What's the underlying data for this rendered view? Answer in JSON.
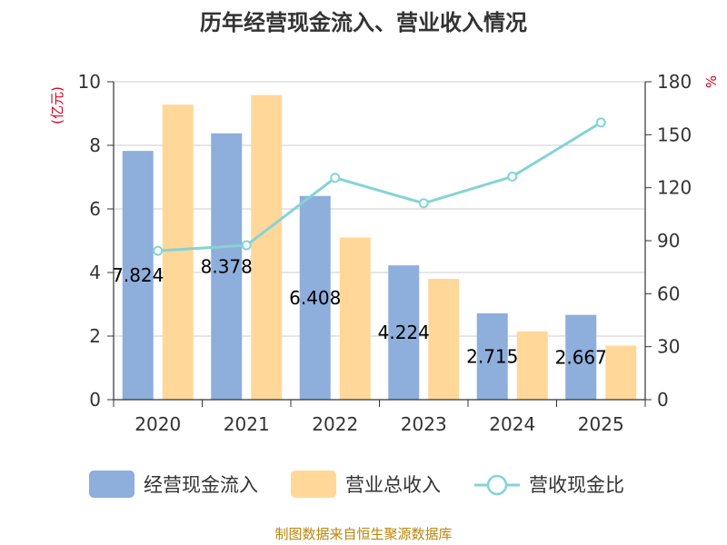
{
  "chart_data": {
    "type": "bar",
    "title": "历年经营现金流入、营业收入情况",
    "categories": [
      "2020",
      "2021",
      "2022",
      "2023",
      "2024",
      "2025"
    ],
    "series": [
      {
        "name": "经营现金流入",
        "type": "bar",
        "axis": "left",
        "color": "#8eaedb",
        "values": [
          7.824,
          8.378,
          6.408,
          4.224,
          2.715,
          2.667
        ],
        "labels": [
          "7.824",
          "8.378",
          "6.408",
          "4.224",
          "2.715",
          "2.667"
        ]
      },
      {
        "name": "营业总收入",
        "type": "bar",
        "axis": "left",
        "color": "#ffd899",
        "values": [
          9.28,
          9.58,
          5.1,
          3.8,
          2.15,
          1.7
        ]
      },
      {
        "name": "营收现金比",
        "type": "line",
        "axis": "right",
        "color": "#85d3d6",
        "values": [
          84.3,
          87.4,
          125.6,
          111.2,
          126.3,
          156.9
        ]
      }
    ],
    "left_axis": {
      "unit": "(亿元)",
      "min": 0,
      "max": 10,
      "ticks": [
        0,
        2,
        4,
        6,
        8,
        10
      ],
      "tick_labels": [
        "0",
        "2",
        "4",
        "6",
        "8",
        "10"
      ]
    },
    "right_axis": {
      "unit": "%",
      "min": 0,
      "max": 180,
      "ticks": [
        0,
        30,
        60,
        90,
        120,
        150,
        180
      ],
      "tick_labels": [
        "0",
        "30",
        "60",
        "90",
        "120",
        "150",
        "180"
      ]
    },
    "grid": true,
    "legend_position": "bottom"
  },
  "footer": {
    "source": "制图数据来自恒生聚源数据库"
  },
  "colors": {
    "grid": "#cccccc",
    "axis": "#333333",
    "unit": "#d9001b",
    "footer": "#b8860b"
  }
}
